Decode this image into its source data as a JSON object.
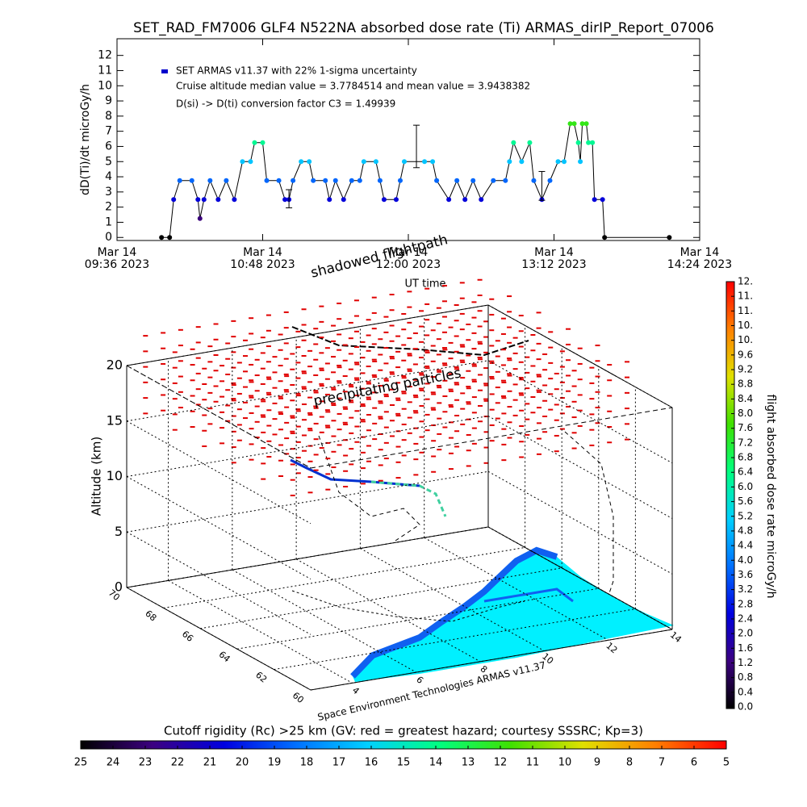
{
  "chart_data": [
    {
      "type": "line",
      "title": "SET_RAD_FM7006  GLF4 N522NA absorbed dose rate (Ti) ARMAS_dirIP_Report_07006",
      "ylabel": "dD(Ti)/dt microGy/h",
      "xlabel": "UT time",
      "annotations": [
        "Cruise altitude median value = 3.7784514 and mean value = 3.9438382",
        "D(si) -> D(ti) conversion factor C3 = 1.49939"
      ],
      "xlim": [
        "2023-03-14T09:36",
        "2023-03-14T14:24"
      ],
      "ylim": [
        -0.2,
        13.1
      ],
      "xticks": [
        {
          "value": "2023-03-14T09:36",
          "label": "Mar 14\n09:36 2023"
        },
        {
          "value": "2023-03-14T10:48",
          "label": "Mar 14\n10:48 2023"
        },
        {
          "value": "2023-03-14T12:00",
          "label": "Mar 14\n12:00 2023"
        },
        {
          "value": "2023-03-14T13:12",
          "label": "Mar 14\n13:12 2023"
        },
        {
          "value": "2023-03-14T14:24",
          "label": "Mar 14\n14:24 2023"
        }
      ],
      "yticks": [
        0,
        1,
        2,
        3,
        4,
        5,
        6,
        7,
        8,
        9,
        10,
        11,
        12
      ],
      "x": [
        "2023-03-14T09:58",
        "2023-03-14T10:02",
        "2023-03-14T10:04",
        "2023-03-14T10:07",
        "2023-03-14T10:13",
        "2023-03-14T10:16",
        "2023-03-14T10:17",
        "2023-03-14T10:19",
        "2023-03-14T10:22",
        "2023-03-14T10:26",
        "2023-03-14T10:30",
        "2023-03-14T10:34",
        "2023-03-14T10:38",
        "2023-03-14T10:42",
        "2023-03-14T10:44",
        "2023-03-14T10:48",
        "2023-03-14T10:50",
        "2023-03-14T10:56",
        "2023-03-14T10:59",
        "2023-03-14T11:01",
        "2023-03-14T11:03",
        "2023-03-14T11:07",
        "2023-03-14T11:11",
        "2023-03-14T11:13",
        "2023-03-14T11:19",
        "2023-03-14T11:21",
        "2023-03-14T11:24",
        "2023-03-14T11:28",
        "2023-03-14T11:32",
        "2023-03-14T11:36",
        "2023-03-14T11:38",
        "2023-03-14T11:44",
        "2023-03-14T11:46",
        "2023-03-14T11:48",
        "2023-03-14T11:54",
        "2023-03-14T11:56",
        "2023-03-14T11:58",
        "2023-03-14T12:08",
        "2023-03-14T12:12",
        "2023-03-14T12:14",
        "2023-03-14T12:20",
        "2023-03-14T12:24",
        "2023-03-14T12:28",
        "2023-03-14T12:32",
        "2023-03-14T12:36",
        "2023-03-14T12:42",
        "2023-03-14T12:48",
        "2023-03-14T12:50",
        "2023-03-14T12:52",
        "2023-03-14T12:56",
        "2023-03-14T13:00",
        "2023-03-14T13:02",
        "2023-03-14T13:06",
        "2023-03-14T13:10",
        "2023-03-14T13:14",
        "2023-03-14T13:17",
        "2023-03-14T13:20",
        "2023-03-14T13:22",
        "2023-03-14T13:24",
        "2023-03-14T13:25",
        "2023-03-14T13:26",
        "2023-03-14T13:28",
        "2023-03-14T13:29",
        "2023-03-14T13:31",
        "2023-03-14T13:32",
        "2023-03-14T13:36",
        "2023-03-14T13:37",
        "2023-03-14T14:09"
      ],
      "series": [
        {
          "name": "SET ARMAS v11.37 with 22% 1-sigma uncertainty",
          "color": "#0000cc",
          "values": [
            0,
            0,
            2.5,
            3.75,
            3.75,
            2.5,
            1.25,
            2.5,
            3.75,
            2.5,
            3.75,
            2.5,
            5.0,
            5.0,
            6.25,
            6.25,
            3.75,
            3.75,
            2.5,
            2.5,
            3.75,
            5.0,
            5.0,
            3.75,
            3.75,
            2.5,
            3.75,
            2.5,
            3.75,
            3.75,
            5.0,
            5.0,
            3.75,
            2.5,
            2.5,
            3.75,
            5.0,
            5.0,
            5.0,
            3.75,
            2.5,
            3.75,
            2.5,
            3.75,
            2.5,
            3.75,
            3.75,
            5.0,
            6.25,
            5.0,
            6.25,
            3.75,
            2.5,
            3.75,
            5.0,
            5.0,
            7.5,
            7.5,
            6.25,
            5.0,
            7.5,
            7.5,
            6.25,
            6.25,
            2.5,
            2.5,
            0,
            0
          ]
        }
      ],
      "error_bars": {
        "x": [
          "2023-03-14T11:01",
          "2023-03-14T12:04",
          "2023-03-14T13:06"
        ],
        "values": [
          2.55,
          6.0,
          3.4
        ],
        "errors": [
          0.6,
          1.4,
          0.95
        ]
      },
      "colorscale": {
        "lim": [
          0,
          11.6
        ],
        "colors": [
          "#000000",
          "#3c0080",
          "#0000e0",
          "#0070ff",
          "#00d0ff",
          "#00ff80",
          "#40e000",
          "#e0e000",
          "#ff8000",
          "#ff0000"
        ]
      }
    },
    {
      "type": "surface3d",
      "zlabel": "Altitude (km)",
      "annotations": [
        "shadowed flightpath",
        "precipitating particles"
      ],
      "credit": "Space Environment Technologies ARMAS v11.37",
      "xlim": [
        2.7,
        14.0
      ],
      "xticks": [
        4,
        6,
        8,
        10,
        12,
        14
      ],
      "ylim": [
        70,
        60
      ],
      "yticks": [
        70,
        68,
        66,
        64,
        62,
        60
      ],
      "zlim": [
        0,
        20
      ],
      "zticks": [
        0,
        5,
        10,
        15,
        20
      ]
    },
    {
      "type": "colorbar",
      "orientation": "vertical",
      "label": "flight absorbed dose rate microGy/h",
      "lim": [
        0,
        11.6
      ],
      "ticks": [
        {
          "value": 0.0,
          "label": "0.0"
        },
        0.4,
        0.8,
        1.2,
        1.6,
        {
          "value": 2.0,
          "label": "2.0"
        },
        2.4,
        2.8,
        3.2,
        3.6,
        {
          "value": 4.0,
          "label": "4.0"
        },
        4.4,
        4.8,
        5.2,
        5.6,
        {
          "value": 6.0,
          "label": "6.0"
        },
        6.4,
        6.8,
        7.2,
        7.6,
        {
          "value": 8.0,
          "label": "8.0"
        },
        8.4,
        8.8,
        9.2,
        9.6,
        {
          "value": 10.0,
          "label": "10."
        },
        {
          "value": 10.4,
          "label": "10."
        },
        {
          "value": 10.8,
          "label": "11."
        },
        {
          "value": 11.2,
          "label": "11."
        },
        {
          "value": 11.6,
          "label": "12."
        }
      ],
      "colors": [
        "#000000",
        "#3c0080",
        "#0000e0",
        "#0070ff",
        "#00d0ff",
        "#00ff80",
        "#40e000",
        "#e0e000",
        "#ff8000",
        "#ff0000"
      ]
    },
    {
      "type": "colorbar",
      "orientation": "horizontal",
      "label": "Cutoff rigidity (Rc) >25 km (GV: red = greatest hazard; courtesy SSSRC; Kp=3)",
      "lim": [
        25,
        5
      ],
      "ticks": [
        25,
        24,
        23,
        22,
        21,
        20,
        19,
        18,
        17,
        16,
        15,
        14,
        13,
        12,
        11,
        10,
        9,
        8,
        7,
        6,
        5
      ],
      "colors": [
        "#000000",
        "#3c0080",
        "#0000e0",
        "#0070ff",
        "#00d0ff",
        "#00ff80",
        "#40e000",
        "#e0e000",
        "#ff8000",
        "#ff0000"
      ]
    }
  ]
}
